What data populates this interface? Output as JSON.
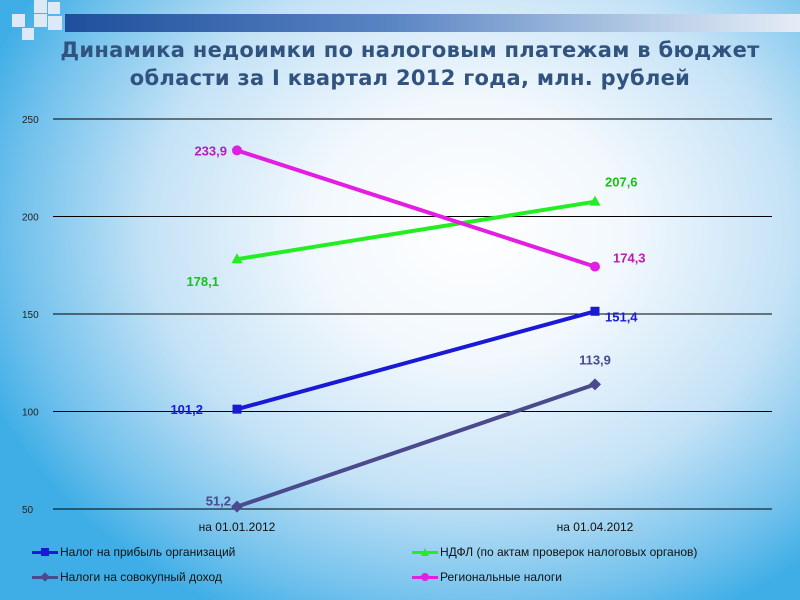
{
  "title": "Динамика недоимки по налоговым платежам в бюджет области за I квартал 2012 года, млн. рублей",
  "chart_data": {
    "type": "line",
    "categories": [
      "на 01.01.2012",
      "на 01.04.2012"
    ],
    "ylim": [
      50,
      250
    ],
    "yticks": [
      "250",
      "200",
      "150",
      "100",
      "50"
    ],
    "grid": true,
    "legend_position": "bottom",
    "series": [
      {
        "name": "Налог на прибыль организаций",
        "values": [
          101.2,
          151.4
        ],
        "labels": [
          "101,2",
          "151,4"
        ],
        "color": "#1a1ad6",
        "marker": "square",
        "label_color": "#1a1ad6"
      },
      {
        "name": "НДФЛ (по актам проверок налоговых органов)",
        "values": [
          178.1,
          207.6
        ],
        "labels": [
          "178,1",
          "207,6"
        ],
        "color": "#22ee22",
        "marker": "triangle",
        "label_color": "#15c415"
      },
      {
        "name": "Налоги на совокупный доход",
        "values": [
          51.2,
          113.9
        ],
        "labels": [
          "51,2",
          "113,9"
        ],
        "color": "#4a4a8c",
        "marker": "diamond",
        "label_color": "#4a4a8c"
      },
      {
        "name": "Региональные налоги",
        "values": [
          233.9,
          174.3
        ],
        "labels": [
          "233,9",
          "174,3"
        ],
        "color": "#e21ee2",
        "marker": "circle",
        "label_color": "#b81cb8"
      }
    ]
  }
}
